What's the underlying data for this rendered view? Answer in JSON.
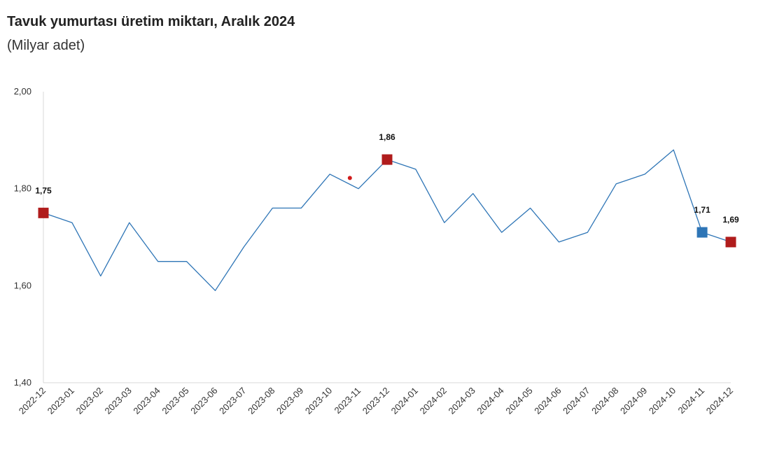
{
  "chart_data": {
    "type": "line",
    "title": "Tavuk yumurtası üretim miktarı, Aralık 2024",
    "subtitle": "(Milyar adet)",
    "xlabel": "",
    "ylabel": "",
    "ylim": [
      1.4,
      2.0
    ],
    "yticks": [
      {
        "value": 1.4,
        "label": "1,40"
      },
      {
        "value": 1.6,
        "label": "1,60"
      },
      {
        "value": 1.8,
        "label": "1,80"
      },
      {
        "value": 2.0,
        "label": "2,00"
      }
    ],
    "categories": [
      "2022-12",
      "2023-01",
      "2023-02",
      "2023-03",
      "2023-04",
      "2023-05",
      "2023-06",
      "2023-07",
      "2023-08",
      "2023-09",
      "2023-10",
      "2023-11",
      "2023-12",
      "2024-01",
      "2024-02",
      "2024-03",
      "2024-04",
      "2024-05",
      "2024-06",
      "2024-07",
      "2024-08",
      "2024-09",
      "2024-10",
      "2024-11",
      "2024-12"
    ],
    "series": [
      {
        "name": "Tavuk yumurtası",
        "color": "#2e75b6",
        "values": [
          1.75,
          1.73,
          1.62,
          1.73,
          1.65,
          1.65,
          1.59,
          1.68,
          1.76,
          1.76,
          1.83,
          1.8,
          1.86,
          1.84,
          1.73,
          1.79,
          1.71,
          1.76,
          1.69,
          1.71,
          1.81,
          1.83,
          1.88,
          1.71,
          1.69
        ]
      }
    ],
    "highlights": [
      {
        "index": 0,
        "label": "1,75",
        "color": "#b01c1c"
      },
      {
        "index": 12,
        "label": "1,86",
        "color": "#b01c1c"
      },
      {
        "index": 23,
        "label": "1,71",
        "color": "#2e75b6"
      },
      {
        "index": 24,
        "label": "1,69",
        "color": "#b01c1c"
      }
    ],
    "annotations": [
      {
        "type": "dot",
        "x_index": 10.7,
        "y": 1.822,
        "color": "#d01c1c"
      }
    ]
  }
}
